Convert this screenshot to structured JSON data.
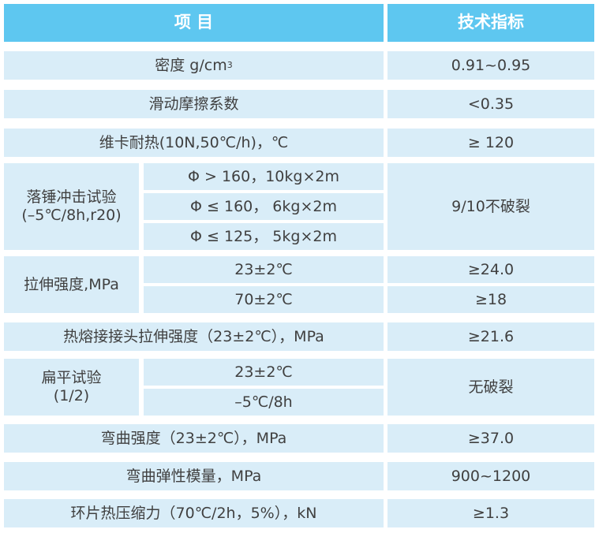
{
  "colors": {
    "header_bg": "#5ec7f0",
    "cell_bg": "#d9edf8",
    "header_text": "#ffffff",
    "body_text": "#404040"
  },
  "header": {
    "item_col": "项 目",
    "spec_col": "技术指标"
  },
  "table": {
    "density": {
      "label": "密度 g/cm",
      "sup": "3",
      "value": "0.91~0.95"
    },
    "friction": {
      "label": "滑动摩擦系数",
      "value": "<0.35"
    },
    "vicat": {
      "label": "维卡耐热(10N,50℃/h)，℃",
      "value": "≥ 120"
    },
    "impact": {
      "name_line1": "落锤冲击试验",
      "name_line2": "(–5℃/8h,r20)",
      "sub1": "Φ > 160，10kg×2m",
      "sub2": "Φ ≤ 160， 6kg×2m",
      "sub3": "Φ ≤ 125， 5kg×2m",
      "value": "9/10不破裂"
    },
    "tensile": {
      "name": "拉伸强度,MPa",
      "sub1": "23±2℃",
      "val1": "≥24.0",
      "sub2": "70±2℃",
      "val2": "≥18"
    },
    "weld": {
      "label": "热熔接接头拉伸强度（23±2℃），MPa",
      "value": "≥21.6"
    },
    "flatten": {
      "name_line1": "扁平试验",
      "name_line2": "(1/2)",
      "sub1": "23±2℃",
      "sub2": "–5℃/8h",
      "value": "无破裂"
    },
    "bend": {
      "label": "弯曲强度（23±2℃），MPa",
      "value": "≥37.0"
    },
    "modulus": {
      "label": "弯曲弹性模量，MPa",
      "value": "900~1200"
    },
    "ring": {
      "label": "环片热压缩力（70℃/2h，5%），kN",
      "value": "≥1.3"
    }
  }
}
